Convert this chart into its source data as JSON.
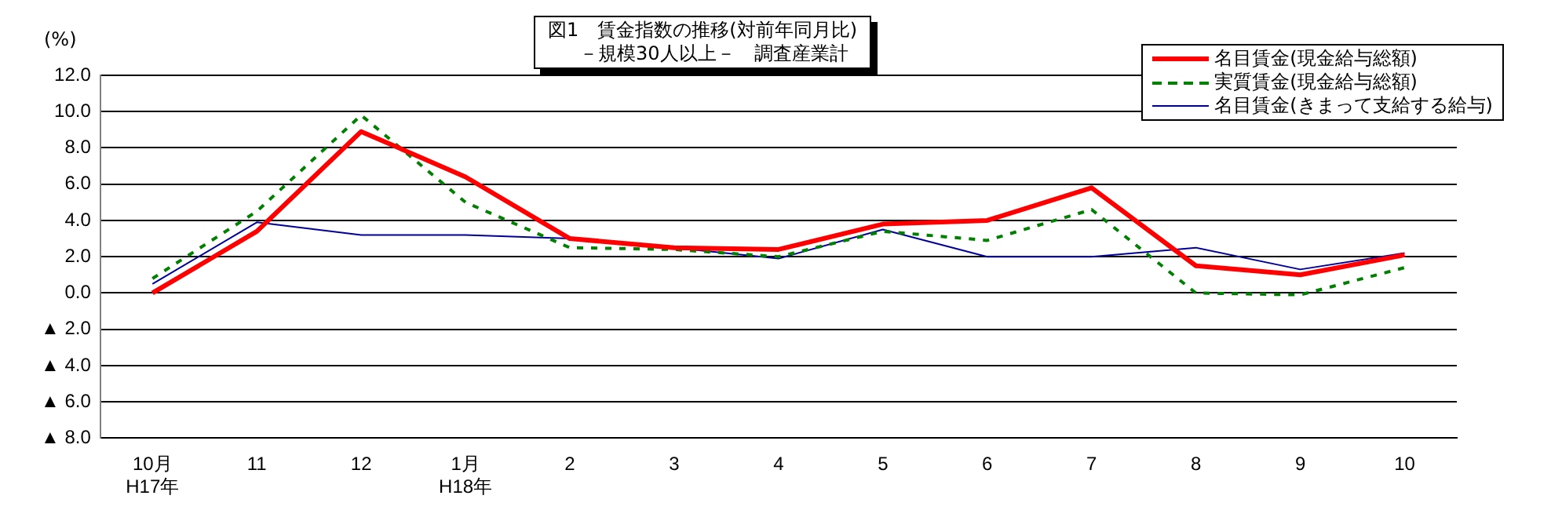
{
  "chart_data": {
    "type": "line",
    "title": "図1　賃金指数の推移(対前年同月比)",
    "subtitle": "－規模30人以上－　調査産業計",
    "ylabel": "(%)",
    "categories": [
      "10月\nH17年",
      "11",
      "12",
      "1月\nH18年",
      "2",
      "3",
      "4",
      "5",
      "6",
      "7",
      "8",
      "9",
      "10"
    ],
    "series": [
      {
        "name": "名目賃金(現金給与総額)",
        "color": "#ff0000",
        "line_style": "solid",
        "values": [
          0.0,
          3.4,
          8.9,
          6.4,
          3.0,
          2.5,
          2.4,
          3.8,
          4.0,
          5.8,
          1.5,
          1.0,
          2.1
        ]
      },
      {
        "name": "実質賃金(現金給与総額)",
        "color": "#008000",
        "line_style": "dashed",
        "values": [
          0.8,
          4.5,
          9.8,
          5.0,
          2.5,
          2.4,
          2.0,
          3.4,
          2.9,
          4.6,
          0.0,
          -0.1,
          1.4
        ]
      },
      {
        "name": "名目賃金(きまって支給する給与)",
        "color": "#000099",
        "line_style": "solid",
        "values": [
          0.5,
          3.9,
          3.2,
          3.2,
          3.0,
          2.5,
          1.9,
          3.5,
          2.0,
          2.0,
          2.5,
          1.3,
          2.2
        ]
      }
    ],
    "ylim": [
      -8,
      12
    ],
    "yticks": [
      {
        "value": -8,
        "label": "▲ 8.0"
      },
      {
        "value": -6,
        "label": "▲ 6.0"
      },
      {
        "value": -4,
        "label": "▲ 4.0"
      },
      {
        "value": -2,
        "label": "▲ 2.0"
      },
      {
        "value": 0,
        "label": "0.0"
      },
      {
        "value": 2,
        "label": "2.0"
      },
      {
        "value": 4,
        "label": "4.0"
      },
      {
        "value": 6,
        "label": "6.0"
      },
      {
        "value": 8,
        "label": "8.0"
      },
      {
        "value": 10,
        "label": "10.0"
      },
      {
        "value": 12,
        "label": "12.0"
      }
    ],
    "grid": "y",
    "legend": "top right",
    "marker": "none"
  }
}
